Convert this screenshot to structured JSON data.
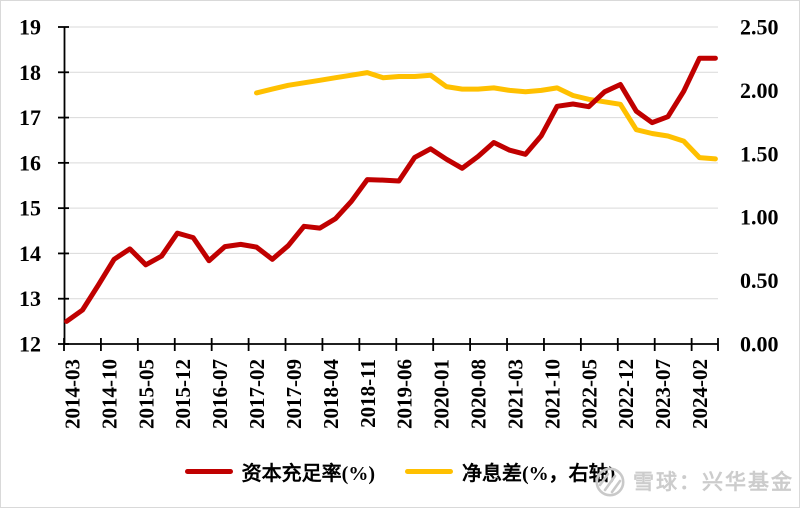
{
  "chart_data": {
    "type": "line",
    "title": "",
    "x_axis": {
      "start_month": "2014-03",
      "months_total": 124,
      "label_every_months": 7,
      "tick_labels": [
        "2014-03",
        "2014-10",
        "2015-05",
        "2015-12",
        "2016-07",
        "2017-02",
        "2017-09",
        "2018-04",
        "2018-11",
        "2019-06",
        "2020-01",
        "2020-08",
        "2021-03",
        "2021-10",
        "2022-05",
        "2022-12",
        "2023-07",
        "2024-02"
      ]
    },
    "left_axis": {
      "min": 12,
      "max": 19,
      "step": 1,
      "ticks": [
        "12",
        "13",
        "14",
        "15",
        "16",
        "17",
        "18",
        "19"
      ]
    },
    "right_axis": {
      "min": 0,
      "max": 2.5,
      "step": 0.5,
      "ticks": [
        "0.00",
        "0.50",
        "1.00",
        "1.50",
        "2.00",
        "2.50"
      ]
    },
    "grid_color": "#d9d9d9",
    "axis_color": "#000000",
    "legend_position": "bottom",
    "series": [
      {
        "name": "资本充足率(%)",
        "axis": "left",
        "color": "#c00000",
        "start_month_index": 0,
        "interval_months": 3,
        "values": [
          12.5,
          12.75,
          13.3,
          13.87,
          14.1,
          13.75,
          13.94,
          14.45,
          14.35,
          13.84,
          14.15,
          14.2,
          14.14,
          13.87,
          14.17,
          14.6,
          14.56,
          14.77,
          15.15,
          15.63,
          15.62,
          15.6,
          16.12,
          16.31,
          16.08,
          15.88,
          16.14,
          16.45,
          16.28,
          16.19,
          16.6,
          17.25,
          17.3,
          17.24,
          17.57,
          17.73,
          17.14,
          16.89,
          17.02,
          17.58,
          18.31,
          18.31
        ]
      },
      {
        "name": "净息差(%，右轴)",
        "axis": "right",
        "color": "#ffc000",
        "start_month_index": 36,
        "interval_months": 3,
        "values": [
          1.98,
          2.01,
          2.04,
          2.06,
          2.08,
          2.1,
          2.12,
          2.14,
          2.1,
          2.11,
          2.11,
          2.12,
          2.03,
          2.01,
          2.01,
          2.02,
          2.0,
          1.99,
          2.0,
          2.02,
          1.96,
          1.93,
          1.91,
          1.89,
          1.69,
          1.66,
          1.64,
          1.6,
          1.47,
          1.46
        ]
      }
    ]
  },
  "legend": {
    "series1_label": "资本充足率(%)",
    "series2_label": "净息差(%，右轴)"
  },
  "watermark": {
    "text": "雪球：兴华基金",
    "logo": "xueqiu-snowball-logo",
    "color": "#cccccc"
  }
}
